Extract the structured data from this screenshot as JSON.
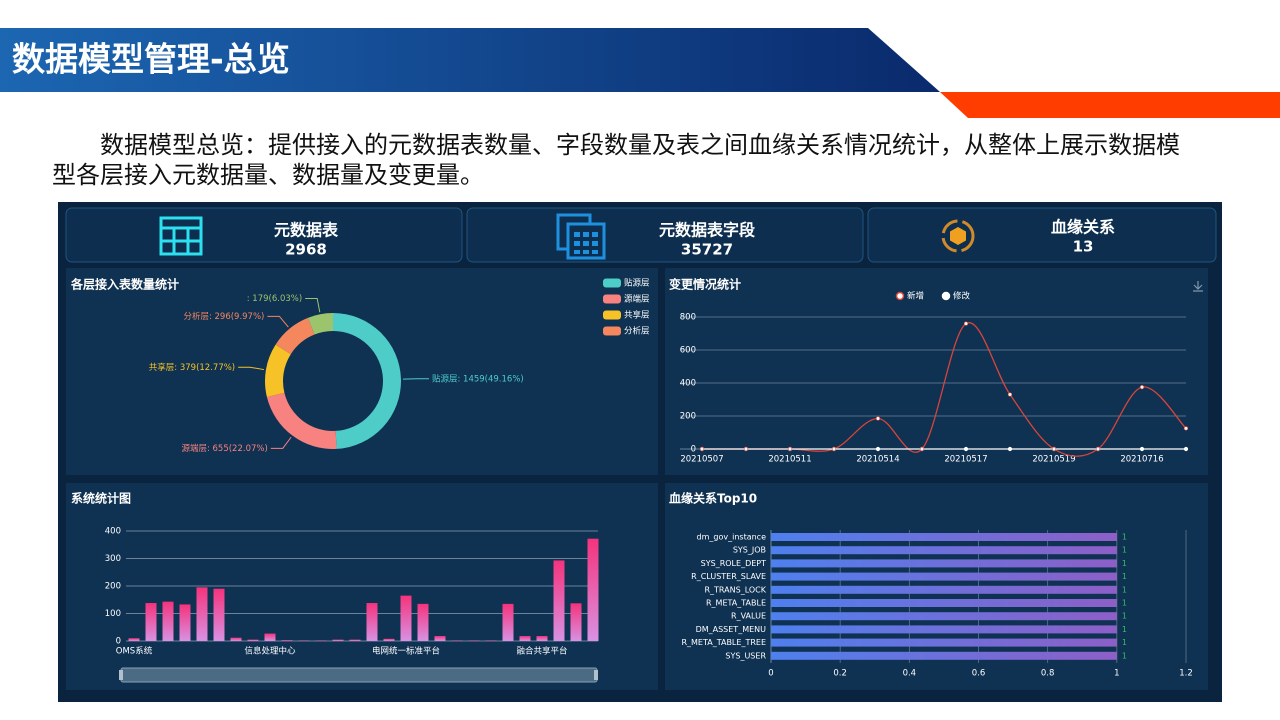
{
  "header": {
    "title": "数据模型管理-总览"
  },
  "intro": "数据模型总览：提供接入的元数据表数量、字段数量及表之间血缘关系情况统计，从整体上展示数据模型各层接入元数据量、数据量及变更量。",
  "stats": [
    {
      "label": "元数据表",
      "value": 2968
    },
    {
      "label": "元数据表字段",
      "value": 35727
    },
    {
      "label": "血缘关系",
      "value": 13
    }
  ],
  "chart_data": [
    {
      "type": "pie",
      "title": "各层接入表数量统计",
      "categories": [
        "贴源层",
        "源端层",
        "共享层",
        "分析层",
        null
      ],
      "values": [
        1459,
        655,
        379,
        296,
        179
      ],
      "value_labels": [
        "贴源层: 1459(49.16%)",
        "源端层: 655(22.07%)",
        "共享层: 379(12.77%)",
        "分析层: 296(9.97%)",
        ": 179(6.03%)"
      ],
      "colors": [
        "#4ecdc8",
        "#f7827f",
        "#f7c227",
        "#f5875f",
        "#9cc46c"
      ]
    },
    {
      "type": "line",
      "title": "变更情况统计",
      "categories": [
        "20210507",
        null,
        "20210511",
        null,
        "20210514",
        null,
        "20210517",
        null,
        "20210519",
        null,
        "20210716",
        null
      ],
      "series": [
        {
          "name": "新增",
          "color": "#d8453a",
          "values": [
            0,
            0,
            0,
            0,
            185,
            0,
            760,
            330,
            0,
            0,
            375,
            125
          ]
        },
        {
          "name": "修改",
          "color": "#ffffff",
          "values": [
            0,
            0,
            0,
            0,
            0,
            0,
            0,
            0,
            0,
            0,
            0,
            0
          ]
        }
      ],
      "ylim": [
        0,
        800
      ],
      "yticks": [
        0,
        200,
        400,
        600,
        800
      ],
      "grid": true,
      "smooth": true
    },
    {
      "type": "bar",
      "title": "系统统计图",
      "categories": [
        "OMS系统",
        null,
        null,
        null,
        null,
        null,
        null,
        null,
        "信息处理中心",
        null,
        null,
        null,
        null,
        null,
        null,
        null,
        "电网统一标准平台",
        null,
        null,
        null,
        null,
        null,
        null,
        null,
        "融合共享平台",
        null,
        null,
        null
      ],
      "values": [
        10,
        138,
        143,
        133,
        195,
        190,
        12,
        5,
        27,
        3,
        2,
        2,
        5,
        5,
        138,
        8,
        165,
        135,
        18,
        2,
        2,
        2,
        135,
        18,
        18,
        293,
        137,
        372
      ],
      "ylim": [
        0,
        400
      ],
      "yticks": [
        0,
        100,
        200,
        300,
        400
      ],
      "grid": true,
      "gradient": [
        "#f5337c",
        "#d892e3"
      ]
    },
    {
      "type": "hbar",
      "title": "血缘关系Top10",
      "categories": [
        "dm_gov_instance",
        "SYS_JOB",
        "SYS_ROLE_DEPT",
        "R_CLUSTER_SLAVE",
        "R_TRANS_LOCK",
        "R_META_TABLE",
        "R_VALUE",
        "DM_ASSET_MENU",
        "R_META_TABLE_TREE",
        "SYS_USER"
      ],
      "values": [
        1,
        1,
        1,
        1,
        1,
        1,
        1,
        1,
        1,
        1
      ],
      "xlim": [
        0,
        1.2
      ],
      "xticks": [
        0,
        0.2,
        0.4,
        0.6,
        0.8,
        1,
        1.2
      ],
      "grid": true,
      "gradient": [
        "#4e80ee",
        "#8d5fc7"
      ],
      "label_color": "#2fbf5f"
    }
  ]
}
